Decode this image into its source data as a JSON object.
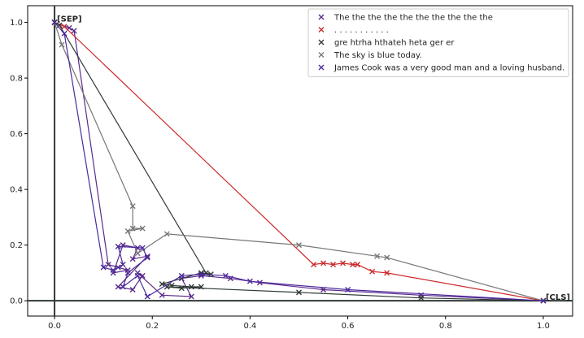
{
  "chart_data": {
    "type": "scatter",
    "title": "",
    "xlabel": "",
    "ylabel": "",
    "xlim": [
      -0.055,
      1.06
    ],
    "ylim": [
      -0.055,
      1.06
    ],
    "xticks": [
      "0.0",
      "0.2",
      "0.4",
      "0.6",
      "0.8",
      "1.0"
    ],
    "yticks": [
      "0.0",
      "0.2",
      "0.4",
      "0.6",
      "0.8",
      "1.0"
    ],
    "xtick_values": [
      0,
      0.2,
      0.4,
      0.6,
      0.8,
      1.0
    ],
    "ytick_values": [
      0,
      0.2,
      0.4,
      0.6,
      0.8,
      1.0
    ],
    "grid": false,
    "legend_position": "top-right",
    "annotations": [
      {
        "text": "[SEP]",
        "x": 0.0,
        "y": 1.0
      },
      {
        "text": "[CLS]",
        "x": 1.0,
        "y": 0.0
      }
    ],
    "series": [
      {
        "name": "The the the the the the the the the the",
        "color": "#5c2a8c",
        "points": [
          [
            0.0,
            1.0
          ],
          [
            0.03,
            0.98
          ],
          [
            0.04,
            0.97
          ],
          [
            0.11,
            0.13
          ],
          [
            0.13,
            0.12
          ],
          [
            0.15,
            0.11
          ],
          [
            0.12,
            0.1
          ],
          [
            0.14,
            0.2
          ],
          [
            0.17,
            0.19
          ],
          [
            0.16,
            0.15
          ],
          [
            0.19,
            0.16
          ],
          [
            0.13,
            0.05
          ],
          [
            0.16,
            0.04
          ],
          [
            0.18,
            0.09
          ],
          [
            0.17,
            0.1
          ],
          [
            0.22,
            0.02
          ],
          [
            0.28,
            0.015
          ],
          [
            0.26,
            0.08
          ],
          [
            0.3,
            0.09
          ],
          [
            0.36,
            0.08
          ],
          [
            0.42,
            0.065
          ],
          [
            0.55,
            0.04
          ],
          [
            0.75,
            0.02
          ],
          [
            1.0,
            0.0
          ]
        ]
      },
      {
        "name": ". . . . . . . . . . .",
        "color": "#cc2a2a",
        "points": [
          [
            0.0,
            1.0
          ],
          [
            0.02,
            0.985
          ],
          [
            0.53,
            0.13
          ],
          [
            0.55,
            0.135
          ],
          [
            0.57,
            0.13
          ],
          [
            0.59,
            0.135
          ],
          [
            0.61,
            0.13
          ],
          [
            0.62,
            0.13
          ],
          [
            0.65,
            0.105
          ],
          [
            0.68,
            0.1
          ],
          [
            1.0,
            0.0
          ]
        ]
      },
      {
        "name": "gre htrha hthateh heta ger er",
        "color": "#2f3a36",
        "points": [
          [
            0.0,
            1.0
          ],
          [
            0.01,
            0.99
          ],
          [
            0.31,
            0.1
          ],
          [
            0.32,
            0.095
          ],
          [
            0.3,
            0.1
          ],
          [
            0.22,
            0.06
          ],
          [
            0.24,
            0.055
          ],
          [
            0.28,
            0.05
          ],
          [
            0.3,
            0.05
          ],
          [
            0.26,
            0.045
          ],
          [
            0.23,
            0.05
          ],
          [
            0.5,
            0.03
          ],
          [
            0.75,
            0.01
          ],
          [
            1.0,
            0.0
          ]
        ]
      },
      {
        "name": "The sky is blue today.",
        "color": "#777777",
        "points": [
          [
            0.0,
            1.0
          ],
          [
            0.015,
            0.92
          ],
          [
            0.16,
            0.34
          ],
          [
            0.16,
            0.26
          ],
          [
            0.18,
            0.26
          ],
          [
            0.15,
            0.25
          ],
          [
            0.17,
            0.17
          ],
          [
            0.23,
            0.24
          ],
          [
            0.5,
            0.2
          ],
          [
            0.66,
            0.16
          ],
          [
            0.68,
            0.155
          ],
          [
            1.0,
            0.0
          ]
        ]
      },
      {
        "name": "James Cook was a very good man and a loving husband.",
        "color": "#4b2a9c",
        "points": [
          [
            0.0,
            1.0
          ],
          [
            0.02,
            0.96
          ],
          [
            0.1,
            0.12
          ],
          [
            0.12,
            0.11
          ],
          [
            0.14,
            0.13
          ],
          [
            0.13,
            0.195
          ],
          [
            0.18,
            0.19
          ],
          [
            0.19,
            0.155
          ],
          [
            0.15,
            0.1
          ],
          [
            0.14,
            0.05
          ],
          [
            0.17,
            0.09
          ],
          [
            0.19,
            0.015
          ],
          [
            0.26,
            0.09
          ],
          [
            0.3,
            0.095
          ],
          [
            0.35,
            0.09
          ],
          [
            0.4,
            0.07
          ],
          [
            0.6,
            0.04
          ],
          [
            1.0,
            0.0
          ]
        ]
      }
    ]
  }
}
